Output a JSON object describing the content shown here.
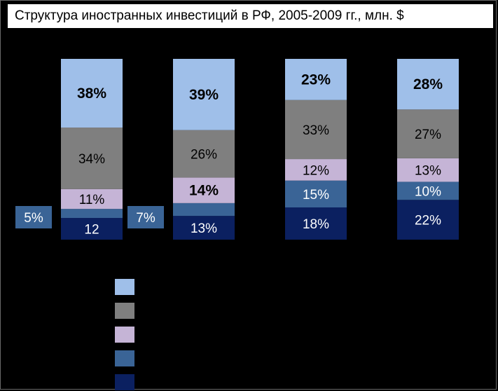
{
  "chart_data": {
    "type": "bar",
    "stacked": true,
    "percent": true,
    "title": "Структура иностранных инвестиций в РФ, 2005-2009 гг., млн. $",
    "categories": [
      "",
      "",
      "",
      ""
    ],
    "series": [
      {
        "values": [
          12,
          13,
          18,
          22
        ],
        "labels": [
          "12",
          "13%",
          "18%",
          "22%"
        ],
        "color": "#0b2060",
        "label_color": "#ffffff"
      },
      {
        "values": [
          5,
          7,
          15,
          10
        ],
        "labels": [
          "5%",
          "7%",
          "15%",
          "10%"
        ],
        "color": "#3a6496",
        "label_color": "#ffffff",
        "outside": [
          true,
          true,
          false,
          false
        ]
      },
      {
        "values": [
          11,
          14,
          12,
          13
        ],
        "labels": [
          "11%",
          "14%",
          "12%",
          "13%"
        ],
        "color": "#c5b4d6",
        "label_color": "#000000",
        "bold": [
          false,
          true,
          false,
          false
        ]
      },
      {
        "values": [
          34,
          26,
          33,
          27
        ],
        "labels": [
          "34%",
          "26%",
          "33%",
          "27%"
        ],
        "color": "#7f7f7f",
        "label_color": "#000000"
      },
      {
        "values": [
          38,
          39,
          23,
          28
        ],
        "labels": [
          "38%",
          "39%",
          "23%",
          "28%"
        ],
        "color": "#9fbfe9",
        "label_color": "#000000",
        "bold": [
          true,
          true,
          true,
          true
        ]
      }
    ],
    "ylim": [
      0,
      100
    ],
    "grid": false,
    "legend": "bottom-left"
  }
}
